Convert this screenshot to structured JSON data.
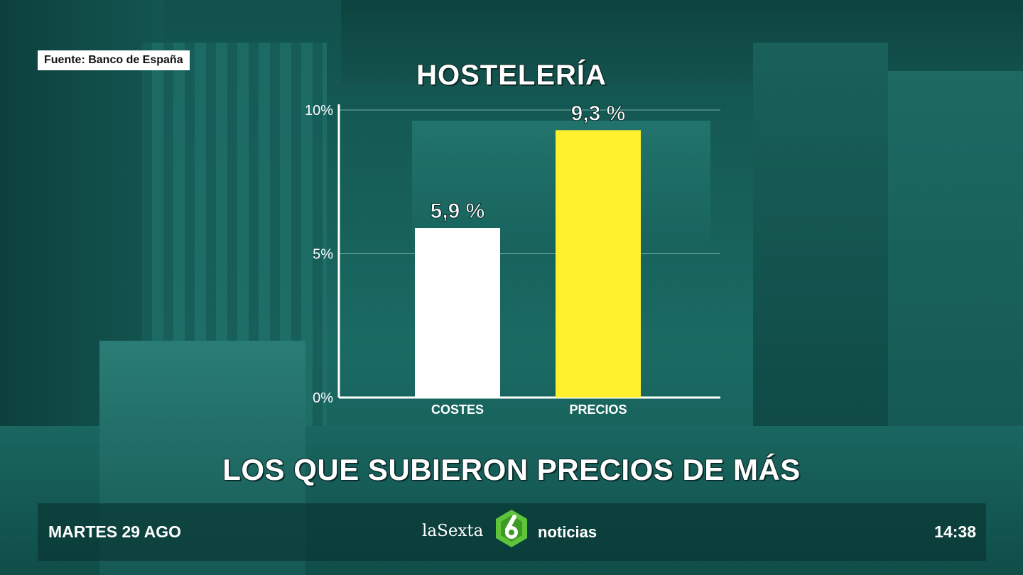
{
  "source_label": "Fuente: Banco de España",
  "headline": "LOS QUE SUBIERON PRECIOS DE MÁS",
  "ticker": {
    "date": "MARTES 29 AGO",
    "brand_left": "laSexta",
    "brand_right": "noticias",
    "time": "14:38"
  },
  "colors": {
    "bar_costes": "#ffffff",
    "bar_precios": "#fff12e",
    "axis": "#ffffff",
    "brand_green": "#5ec43a"
  },
  "icons": [
    "lasexta-6-logo-icon"
  ],
  "chart_data": {
    "type": "bar",
    "title": "HOSTELERÍA",
    "categories": [
      "COSTES",
      "PRECIOS"
    ],
    "values": [
      5.9,
      9.3
    ],
    "value_labels": [
      "5,9 %",
      "9,3 %"
    ],
    "ylim": [
      0,
      10
    ],
    "yticks": [
      0,
      5,
      10
    ],
    "ytick_labels": [
      "0%",
      "5%",
      "10%"
    ],
    "xlabel": "",
    "ylabel": "",
    "grid": true
  }
}
